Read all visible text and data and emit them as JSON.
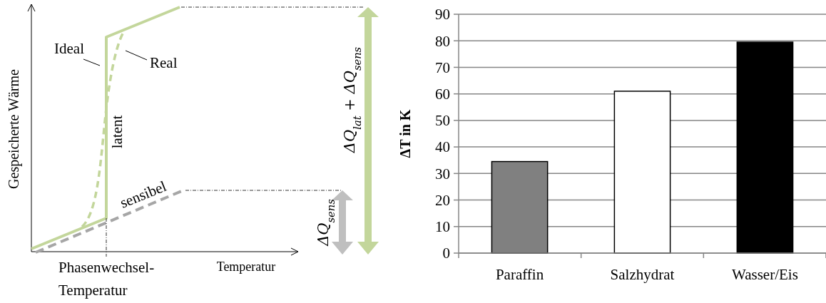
{
  "chart_data": [
    {
      "type": "other",
      "xlabel": "Temperatur",
      "ylabel": "Gespeicherte Wärme",
      "annotations": [
        "Ideal",
        "Real",
        "sensibel",
        "latent",
        "Phasenwechsel-Temperatur",
        "ΔQ$_{sens}$",
        "ΔQ$_{lat}$ + ΔQ$_{sens}$"
      ]
    },
    {
      "type": "bar",
      "ylabel": "ΔT in K",
      "categories": [
        "Paraffin",
        "Salzhydrat",
        "Wasser/Eis"
      ],
      "values": [
        34.5,
        61,
        79.5
      ],
      "colors": [
        "#808080",
        "#ffffff",
        "#000000"
      ],
      "ylim": [
        0,
        90
      ],
      "yticks": [
        0,
        10,
        20,
        30,
        40,
        50,
        60,
        70,
        80,
        90
      ],
      "grid": "y"
    }
  ]
}
